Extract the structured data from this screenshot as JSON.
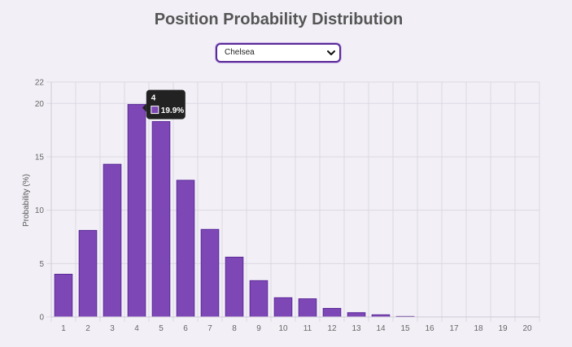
{
  "page": {
    "title": "Position Probability Distribution"
  },
  "team_select": {
    "selected": "Chelsea",
    "icon": "chevron-down-icon"
  },
  "colors": {
    "bar_fill": "#7e47b6",
    "bar_stroke": "#5b2a99",
    "grid": "#dcd8e3",
    "tooltip_bg": "#222222"
  },
  "tooltip": {
    "title": "4",
    "value_label": "19.9%"
  },
  "chart_data": {
    "type": "bar",
    "categories": [
      "1",
      "2",
      "3",
      "4",
      "5",
      "6",
      "7",
      "8",
      "9",
      "10",
      "11",
      "12",
      "13",
      "14",
      "15",
      "16",
      "17",
      "18",
      "19",
      "20"
    ],
    "values": [
      4.0,
      8.1,
      14.3,
      19.9,
      18.3,
      12.8,
      8.2,
      5.6,
      3.4,
      1.8,
      1.7,
      0.8,
      0.4,
      0.2,
      0.05,
      0,
      0,
      0,
      0,
      0
    ],
    "title": "Position Probability Distribution",
    "xlabel": "",
    "ylabel": "Probability (%)",
    "ylim": [
      0,
      22
    ],
    "yticks": [
      0,
      5,
      10,
      15,
      20,
      22
    ],
    "grid": true,
    "highlighted_category": "4"
  }
}
